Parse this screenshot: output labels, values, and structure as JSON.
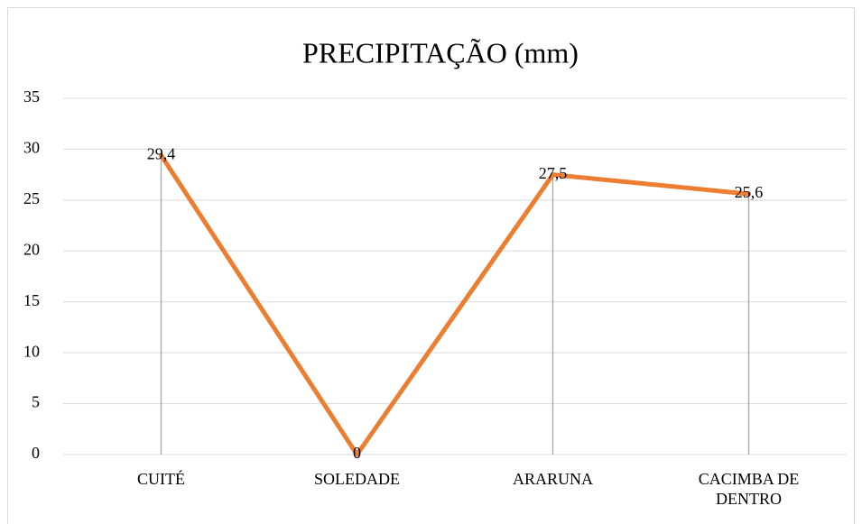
{
  "chart_data": {
    "type": "line",
    "title": "PRECIPITAÇÃO (mm)",
    "categories": [
      "CUITÉ",
      "SOLEDADE",
      "ARARUNA",
      "CACIMBA DE DENTRO"
    ],
    "values": [
      29.4,
      0,
      27.5,
      25.6
    ],
    "value_labels": [
      "29,4",
      "0",
      "27,5",
      "25,6"
    ],
    "color": "#ed7d31",
    "ylim": [
      0,
      35
    ],
    "yticks": [
      0,
      5,
      10,
      15,
      20,
      25,
      30,
      35
    ],
    "grid": true,
    "drop_lines": true
  }
}
